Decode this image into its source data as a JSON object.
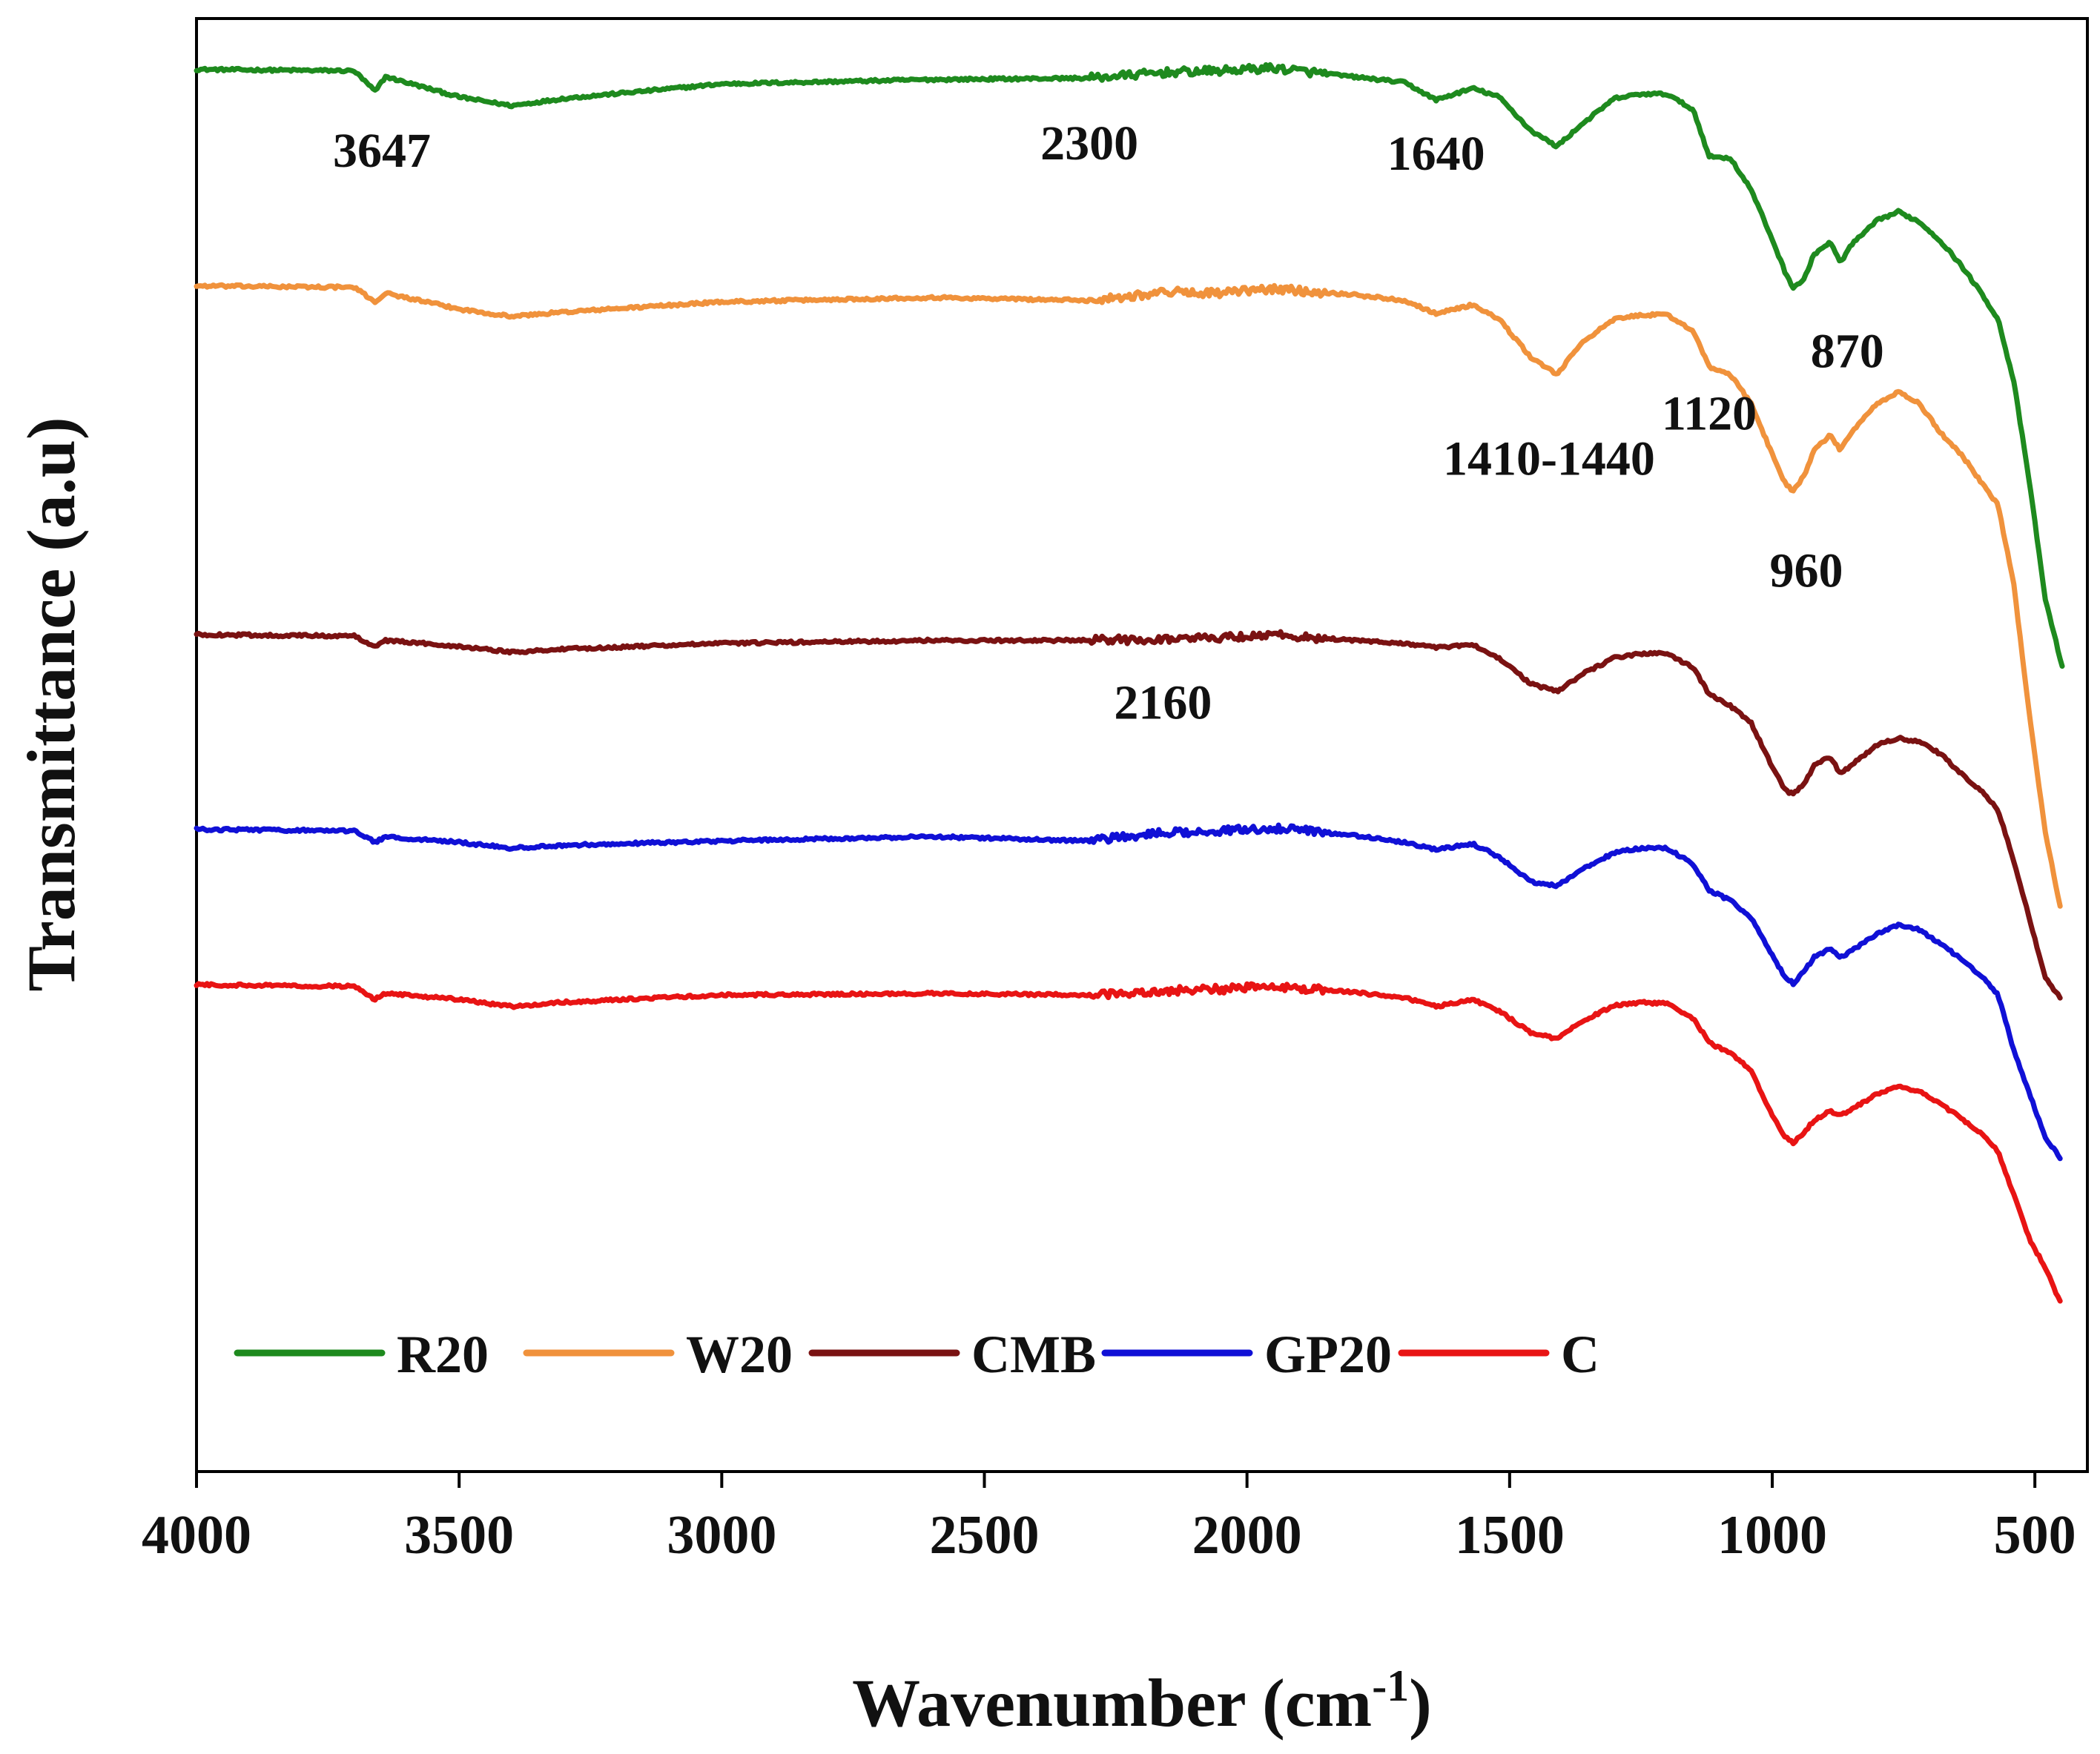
{
  "chart_data": {
    "type": "line",
    "title": "",
    "xlabel": "Wavenumber (cm",
    "xlabel_sup": "-1",
    "xlabel_close": ")",
    "ylabel": "Transmittance (a.u)",
    "xlim": [
      4000,
      400
    ],
    "ylim": [
      0,
      100
    ],
    "x_reversed": true,
    "grid": false,
    "legend_position": "bottom",
    "x_ticks": [
      4000,
      3500,
      3000,
      2500,
      2000,
      1500,
      1000,
      500
    ],
    "x_tick_labels": [
      "4000",
      "3500",
      "3000",
      "2500",
      "2000",
      "1500",
      "1000",
      "500"
    ],
    "series": [
      {
        "name": "R20",
        "color": "#1e8a1e",
        "points": [
          [
            4000,
            96.5
          ],
          [
            3700,
            96.4
          ],
          [
            3660,
            95.0
          ],
          [
            3640,
            96.0
          ],
          [
            3500,
            94.6
          ],
          [
            3400,
            94.0
          ],
          [
            3300,
            94.5
          ],
          [
            3000,
            95.5
          ],
          [
            2600,
            95.8
          ],
          [
            2300,
            95.9
          ],
          [
            2150,
            96.3
          ],
          [
            2050,
            96.4
          ],
          [
            1950,
            96.6
          ],
          [
            1800,
            96.0
          ],
          [
            1700,
            95.6
          ],
          [
            1640,
            94.4
          ],
          [
            1570,
            95.2
          ],
          [
            1520,
            94.6
          ],
          [
            1460,
            92.3
          ],
          [
            1410,
            91.2
          ],
          [
            1360,
            92.8
          ],
          [
            1300,
            94.5
          ],
          [
            1250,
            94.8
          ],
          [
            1200,
            94.8
          ],
          [
            1150,
            93.7
          ],
          [
            1120,
            90.5
          ],
          [
            1080,
            90.4
          ],
          [
            1040,
            88.2
          ],
          [
            1000,
            84.8
          ],
          [
            975,
            82.5
          ],
          [
            960,
            81.5
          ],
          [
            940,
            82.0
          ],
          [
            920,
            83.8
          ],
          [
            890,
            84.6
          ],
          [
            870,
            83.2
          ],
          [
            850,
            84.4
          ],
          [
            800,
            86.1
          ],
          [
            760,
            86.7
          ],
          [
            720,
            86.0
          ],
          [
            680,
            84.7
          ],
          [
            640,
            83.0
          ],
          [
            600,
            81.0
          ],
          [
            570,
            79.3
          ],
          [
            540,
            75.0
          ],
          [
            510,
            68.0
          ],
          [
            480,
            60.0
          ],
          [
            445,
            55.0
          ]
        ]
      },
      {
        "name": "W20",
        "color": "#f0923c",
        "points": [
          [
            4000,
            81.6
          ],
          [
            3700,
            81.5
          ],
          [
            3660,
            80.5
          ],
          [
            3640,
            81.1
          ],
          [
            3500,
            80.0
          ],
          [
            3400,
            79.5
          ],
          [
            3300,
            79.8
          ],
          [
            3000,
            80.5
          ],
          [
            2600,
            80.8
          ],
          [
            2300,
            80.6
          ],
          [
            2150,
            81.2
          ],
          [
            2050,
            81.1
          ],
          [
            1950,
            81.4
          ],
          [
            1800,
            81.0
          ],
          [
            1700,
            80.6
          ],
          [
            1640,
            79.7
          ],
          [
            1570,
            80.3
          ],
          [
            1520,
            79.3
          ],
          [
            1460,
            76.7
          ],
          [
            1410,
            75.5
          ],
          [
            1360,
            77.8
          ],
          [
            1300,
            79.3
          ],
          [
            1250,
            79.6
          ],
          [
            1200,
            79.6
          ],
          [
            1150,
            78.5
          ],
          [
            1120,
            76.0
          ],
          [
            1080,
            75.5
          ],
          [
            1040,
            73.5
          ],
          [
            1000,
            70.0
          ],
          [
            975,
            68.0
          ],
          [
            960,
            67.5
          ],
          [
            940,
            68.5
          ],
          [
            920,
            70.3
          ],
          [
            890,
            71.3
          ],
          [
            870,
            70.3
          ],
          [
            850,
            71.5
          ],
          [
            800,
            73.5
          ],
          [
            760,
            74.3
          ],
          [
            720,
            73.5
          ],
          [
            680,
            71.5
          ],
          [
            640,
            70.0
          ],
          [
            600,
            68.0
          ],
          [
            570,
            66.5
          ],
          [
            540,
            61.0
          ],
          [
            510,
            52.0
          ],
          [
            480,
            44.0
          ],
          [
            450,
            38.5
          ]
        ]
      },
      {
        "name": "CMB",
        "color": "#7a1212",
        "points": [
          [
            4000,
            57.6
          ],
          [
            3700,
            57.5
          ],
          [
            3660,
            56.8
          ],
          [
            3640,
            57.2
          ],
          [
            3500,
            56.8
          ],
          [
            3400,
            56.4
          ],
          [
            3300,
            56.6
          ],
          [
            3000,
            57.0
          ],
          [
            2600,
            57.2
          ],
          [
            2300,
            57.2
          ],
          [
            2150,
            57.3
          ],
          [
            2050,
            57.4
          ],
          [
            1950,
            57.6
          ],
          [
            1800,
            57.2
          ],
          [
            1700,
            57.0
          ],
          [
            1640,
            56.7
          ],
          [
            1570,
            56.9
          ],
          [
            1520,
            56.0
          ],
          [
            1460,
            54.2
          ],
          [
            1410,
            53.7
          ],
          [
            1360,
            54.9
          ],
          [
            1300,
            56.0
          ],
          [
            1250,
            56.3
          ],
          [
            1200,
            56.3
          ],
          [
            1150,
            55.3
          ],
          [
            1120,
            53.5
          ],
          [
            1080,
            52.7
          ],
          [
            1040,
            51.5
          ],
          [
            1000,
            48.5
          ],
          [
            975,
            46.9
          ],
          [
            960,
            46.6
          ],
          [
            940,
            47.3
          ],
          [
            920,
            48.6
          ],
          [
            890,
            49.2
          ],
          [
            870,
            48.0
          ],
          [
            850,
            48.6
          ],
          [
            800,
            50.0
          ],
          [
            760,
            50.5
          ],
          [
            720,
            50.2
          ],
          [
            680,
            49.4
          ],
          [
            640,
            48.0
          ],
          [
            600,
            46.8
          ],
          [
            570,
            45.5
          ],
          [
            540,
            42.0
          ],
          [
            510,
            38.0
          ],
          [
            480,
            34.0
          ],
          [
            450,
            32.5
          ]
        ]
      },
      {
        "name": "GP20",
        "color": "#1010d6",
        "points": [
          [
            4000,
            44.2
          ],
          [
            3700,
            44.1
          ],
          [
            3660,
            43.3
          ],
          [
            3640,
            43.7
          ],
          [
            3500,
            43.3
          ],
          [
            3400,
            42.9
          ],
          [
            3300,
            43.1
          ],
          [
            3000,
            43.4
          ],
          [
            2600,
            43.7
          ],
          [
            2300,
            43.4
          ],
          [
            2150,
            44.0
          ],
          [
            2050,
            44.1
          ],
          [
            1950,
            44.3
          ],
          [
            1800,
            43.8
          ],
          [
            1700,
            43.3
          ],
          [
            1640,
            42.8
          ],
          [
            1570,
            43.2
          ],
          [
            1520,
            42.3
          ],
          [
            1460,
            40.6
          ],
          [
            1410,
            40.3
          ],
          [
            1360,
            41.5
          ],
          [
            1300,
            42.6
          ],
          [
            1250,
            42.9
          ],
          [
            1200,
            42.9
          ],
          [
            1150,
            41.8
          ],
          [
            1120,
            40.0
          ],
          [
            1080,
            39.3
          ],
          [
            1040,
            38.1
          ],
          [
            1000,
            35.5
          ],
          [
            975,
            34.0
          ],
          [
            960,
            33.6
          ],
          [
            940,
            34.4
          ],
          [
            920,
            35.4
          ],
          [
            890,
            36.0
          ],
          [
            870,
            35.4
          ],
          [
            850,
            35.8
          ],
          [
            800,
            37.0
          ],
          [
            760,
            37.6
          ],
          [
            720,
            37.3
          ],
          [
            680,
            36.3
          ],
          [
            640,
            35.3
          ],
          [
            600,
            34.0
          ],
          [
            570,
            32.8
          ],
          [
            540,
            29.0
          ],
          [
            510,
            26.0
          ],
          [
            480,
            23.0
          ],
          [
            450,
            21.5
          ]
        ]
      },
      {
        "name": "C",
        "color": "#e81414",
        "points": [
          [
            4000,
            33.5
          ],
          [
            3700,
            33.4
          ],
          [
            3660,
            32.5
          ],
          [
            3640,
            32.9
          ],
          [
            3500,
            32.5
          ],
          [
            3400,
            32.0
          ],
          [
            3300,
            32.3
          ],
          [
            3000,
            32.8
          ],
          [
            2600,
            32.9
          ],
          [
            2300,
            32.8
          ],
          [
            2150,
            33.1
          ],
          [
            2050,
            33.2
          ],
          [
            1950,
            33.4
          ],
          [
            1800,
            33.0
          ],
          [
            1700,
            32.6
          ],
          [
            1640,
            32.0
          ],
          [
            1570,
            32.5
          ],
          [
            1520,
            31.7
          ],
          [
            1460,
            30.2
          ],
          [
            1410,
            29.8
          ],
          [
            1360,
            31.0
          ],
          [
            1300,
            32.1
          ],
          [
            1250,
            32.3
          ],
          [
            1200,
            32.2
          ],
          [
            1150,
            31.2
          ],
          [
            1120,
            29.5
          ],
          [
            1080,
            28.8
          ],
          [
            1040,
            27.6
          ],
          [
            1000,
            24.5
          ],
          [
            975,
            23.0
          ],
          [
            960,
            22.6
          ],
          [
            940,
            23.3
          ],
          [
            920,
            24.2
          ],
          [
            890,
            24.8
          ],
          [
            870,
            24.5
          ],
          [
            850,
            24.9
          ],
          [
            800,
            26.0
          ],
          [
            760,
            26.5
          ],
          [
            720,
            26.2
          ],
          [
            680,
            25.3
          ],
          [
            640,
            24.3
          ],
          [
            600,
            23.2
          ],
          [
            570,
            22.0
          ],
          [
            540,
            19.0
          ],
          [
            510,
            16.0
          ],
          [
            480,
            14.0
          ],
          [
            450,
            11.5
          ]
        ]
      }
    ],
    "annotations": [
      {
        "text": "3647",
        "x": 3647,
        "y": 89.8
      },
      {
        "text": "2300",
        "x": 2300,
        "y": 90.3
      },
      {
        "text": "1640",
        "x": 1640,
        "y": 89.6
      },
      {
        "text": "870",
        "x": 857,
        "y": 76.0
      },
      {
        "text": "1120",
        "x": 1120,
        "y": 71.7
      },
      {
        "text": "1410-1440",
        "x": 1425,
        "y": 68.6
      },
      {
        "text": "960",
        "x": 935,
        "y": 60.9
      },
      {
        "text": "2160",
        "x": 2160,
        "y": 51.8
      }
    ]
  }
}
